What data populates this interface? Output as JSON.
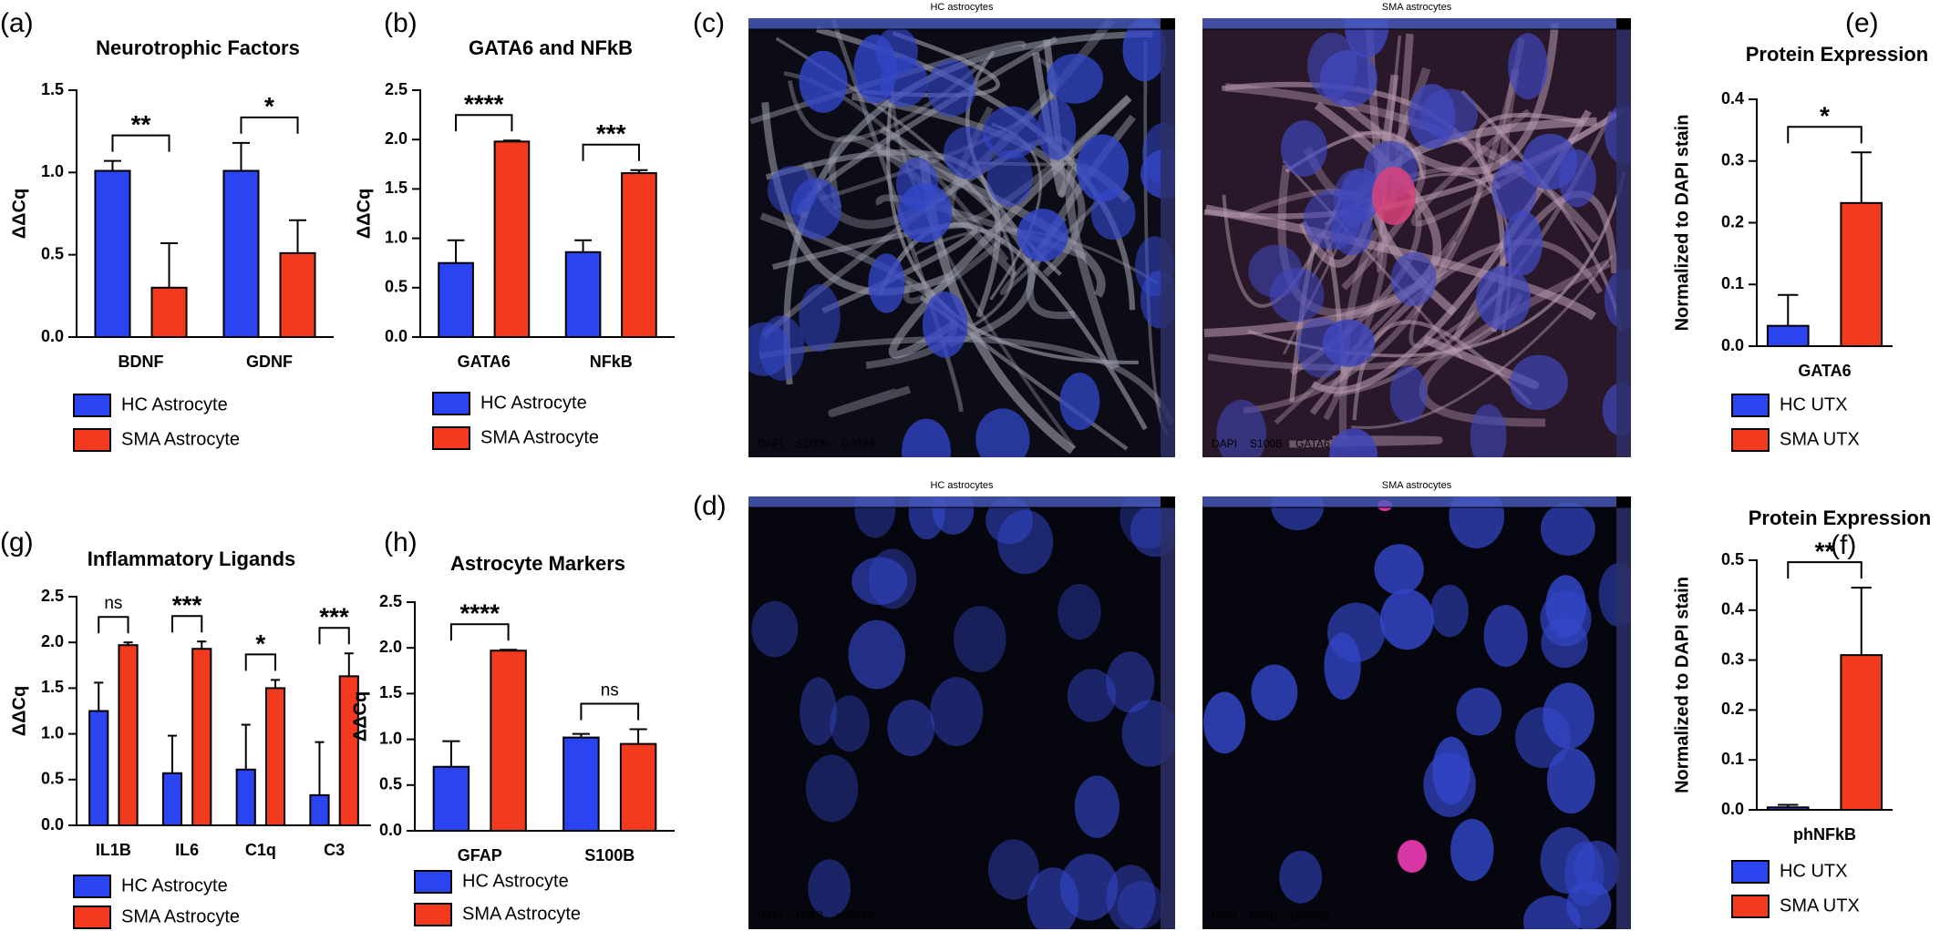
{
  "chart_data": [
    {
      "type": "bar",
      "panel": "(a)",
      "title": "Neurotrophic Factors",
      "ylabel": "ΔΔCq",
      "categories": [
        "BDNF",
        "GDNF"
      ],
      "series": [
        {
          "name": "HC Astrocyte",
          "color": "#2b44f2",
          "values": [
            1.01,
            1.01
          ],
          "errors": [
            0.06,
            0.17
          ]
        },
        {
          "name": "SMA Astrocyte",
          "color": "#f23a1f",
          "values": [
            0.3,
            0.51
          ],
          "errors": [
            0.27,
            0.2
          ]
        }
      ],
      "significance": [
        "**",
        "*"
      ],
      "ylim": [
        0,
        1.5
      ],
      "yticks": [
        {
          "value": 0,
          "label": "0.0"
        },
        0.5,
        {
          "value": 1,
          "label": "1.0"
        },
        1.5
      ]
    },
    {
      "type": "bar",
      "panel": "(b)",
      "title": "GATA6 and NFkB",
      "ylabel": "ΔΔCq",
      "categories": [
        "GATA6",
        "NFkB"
      ],
      "series": [
        {
          "name": "HC Astrocyte",
          "color": "#2b44f2",
          "values": [
            0.75,
            0.86
          ],
          "errors": [
            0.23,
            0.12
          ]
        },
        {
          "name": "SMA Astrocyte",
          "color": "#f23a1f",
          "values": [
            1.98,
            1.66
          ],
          "errors": [
            0.01,
            0.03
          ]
        }
      ],
      "significance": [
        "****",
        "***"
      ],
      "ylim": [
        0,
        2.5
      ],
      "yticks": [
        {
          "value": 0,
          "label": "0.0"
        },
        0.5,
        {
          "value": 1,
          "label": "1.0"
        },
        1.5,
        {
          "value": 2,
          "label": "2.0"
        },
        2.5
      ]
    },
    {
      "type": "bar",
      "panel": "(e)",
      "title": "Protein Expression",
      "ylabel": "Normalized to DAPI stain",
      "categories": [
        "GATA6"
      ],
      "series": [
        {
          "name": "HC UTX",
          "color": "#2b44f2",
          "values": [
            0.033
          ],
          "errors": [
            0.05
          ]
        },
        {
          "name": "SMA UTX",
          "color": "#f23a1f",
          "values": [
            0.232
          ],
          "errors": [
            0.082
          ]
        }
      ],
      "significance": [
        "*"
      ],
      "ylim": [
        0,
        0.4
      ],
      "yticks": [
        {
          "value": 0,
          "label": "0.0"
        },
        0.1,
        0.2,
        0.3,
        0.4
      ]
    },
    {
      "type": "bar",
      "panel": "(f)",
      "title": "Protein Expression",
      "ylabel": "Normalized to DAPI stain",
      "categories": [
        "phNFkB"
      ],
      "series": [
        {
          "name": "HC UTX",
          "color": "#2b44f2",
          "values": [
            0.005
          ],
          "errors": [
            0.005
          ]
        },
        {
          "name": "SMA UTX",
          "color": "#f23a1f",
          "values": [
            0.31
          ],
          "errors": [
            0.135
          ]
        }
      ],
      "significance": [
        "**"
      ],
      "ylim": [
        0,
        0.5
      ],
      "yticks": [
        {
          "value": 0,
          "label": "0.0"
        },
        0.1,
        0.2,
        0.3,
        0.4,
        0.5
      ]
    },
    {
      "type": "bar",
      "panel": "(g)",
      "title": "Inflammatory Ligands",
      "ylabel": "ΔΔCq",
      "categories": [
        "IL1B",
        "IL6",
        "C1q",
        "C3"
      ],
      "series": [
        {
          "name": "HC Astrocyte",
          "color": "#2b44f2",
          "values": [
            1.25,
            0.57,
            0.61,
            0.33
          ],
          "errors": [
            0.31,
            0.41,
            0.49,
            0.58
          ]
        },
        {
          "name": "SMA Astrocyte",
          "color": "#f23a1f",
          "values": [
            1.97,
            1.93,
            1.5,
            1.63
          ],
          "errors": [
            0.03,
            0.08,
            0.09,
            0.25
          ]
        }
      ],
      "significance": [
        "ns",
        "***",
        "*",
        "***"
      ],
      "ylim": [
        0,
        2.5
      ],
      "yticks": [
        {
          "value": 0,
          "label": "0.0"
        },
        0.5,
        {
          "value": 1,
          "label": "1.0"
        },
        1.5,
        {
          "value": 2,
          "label": "2.0"
        },
        2.5
      ]
    },
    {
      "type": "bar",
      "panel": "(h)",
      "title": "Astrocyte Markers",
      "ylabel": "ΔΔCq",
      "categories": [
        "GFAP",
        "S100B"
      ],
      "series": [
        {
          "name": "HC Astrocyte",
          "color": "#2b44f2",
          "values": [
            0.7,
            1.02
          ],
          "errors": [
            0.28,
            0.04
          ]
        },
        {
          "name": "SMA Astrocyte",
          "color": "#f23a1f",
          "values": [
            1.97,
            0.95
          ],
          "errors": [
            0.01,
            0.16
          ]
        }
      ],
      "significance": [
        "****",
        "ns"
      ],
      "ylim": [
        0,
        2.5
      ],
      "yticks": [
        {
          "value": 0,
          "label": "0.0"
        },
        0.5,
        {
          "value": 1,
          "label": "1.0"
        },
        1.5,
        {
          "value": 2,
          "label": "2.0"
        },
        2.5
      ]
    }
  ],
  "micrographs": [
    {
      "panel": "(c)",
      "images": [
        {
          "title": "HC astrocytes",
          "channels": [
            {
              "name": "DAPI",
              "color": "#3d6bd6"
            },
            {
              "name": "S100B",
              "color": "#ffffff"
            },
            {
              "name": "GATA6",
              "color": "#ff2a2a"
            }
          ]
        },
        {
          "title": "SMA astrocytes",
          "channels": [
            {
              "name": "DAPI",
              "color": "#3d6bd6"
            },
            {
              "name": "S100B",
              "color": "#ffffff"
            },
            {
              "name": "GATA6",
              "color": "#ff2a2a"
            }
          ]
        }
      ]
    },
    {
      "panel": "(d)",
      "images": [
        {
          "title": "HC astrocytes",
          "channels": [
            {
              "name": "DAPI",
              "color": "#3d6bd6"
            },
            {
              "name": "NFkB",
              "color": "#33e0e0"
            },
            {
              "name": "phNFkB",
              "color": "#ff2a2a"
            }
          ]
        },
        {
          "title": "SMA astrocytes",
          "channels": [
            {
              "name": "DAPI",
              "color": "#3d6bd6"
            },
            {
              "name": "NFkB",
              "color": "#33e0e0"
            },
            {
              "name": "phNFkB",
              "color": "#ff2a2a"
            }
          ]
        }
      ]
    }
  ]
}
